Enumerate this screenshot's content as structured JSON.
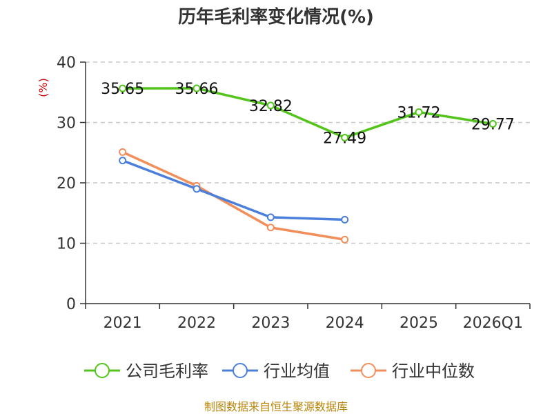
{
  "chart_data": {
    "type": "line",
    "title": "历年毛利率变化情况(%)",
    "ylabel": "(%)",
    "xlabel": "",
    "categories": [
      "2021",
      "2022",
      "2023",
      "2024",
      "2025",
      "2026Q1"
    ],
    "ylim": [
      0,
      40
    ],
    "yticks": [
      0,
      10,
      20,
      30,
      40
    ],
    "grid": true,
    "legend_position": "bottom",
    "series": [
      {
        "name": "公司毛利率",
        "color": "#52c41a",
        "values": [
          35.65,
          35.66,
          32.82,
          27.49,
          31.72,
          29.77
        ],
        "labels": [
          "35.65",
          "35.66",
          "32.82",
          "27.49",
          "31.72",
          "29.77"
        ]
      },
      {
        "name": "行业均值",
        "color": "#4a7fdc",
        "values": [
          23.7,
          19.0,
          14.3,
          13.9,
          null,
          null
        ]
      },
      {
        "name": "行业中位数",
        "color": "#f28e5a",
        "values": [
          25.1,
          19.5,
          12.6,
          10.6,
          null,
          null
        ]
      }
    ]
  },
  "footer": {
    "source": "制图数据来自恒生聚源数据库"
  }
}
